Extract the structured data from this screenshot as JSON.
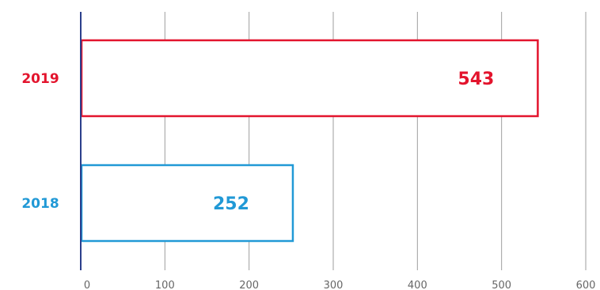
{
  "chart_data": {
    "type": "bar",
    "orientation": "horizontal",
    "categories": [
      "2019",
      "2018"
    ],
    "values": [
      543,
      252
    ],
    "colors": [
      "#e3142d",
      "#2199d6"
    ],
    "xlim": [
      0,
      600
    ],
    "xticks": [
      "0",
      "100",
      "200",
      "300",
      "400",
      "500",
      "600"
    ],
    "grid": true,
    "legend": "none",
    "title": "",
    "xlabel": "",
    "ylabel": "",
    "bar_fill": "#ffffff",
    "axis_color": "#2b3f8c",
    "grid_color": "#9e9e9e"
  }
}
